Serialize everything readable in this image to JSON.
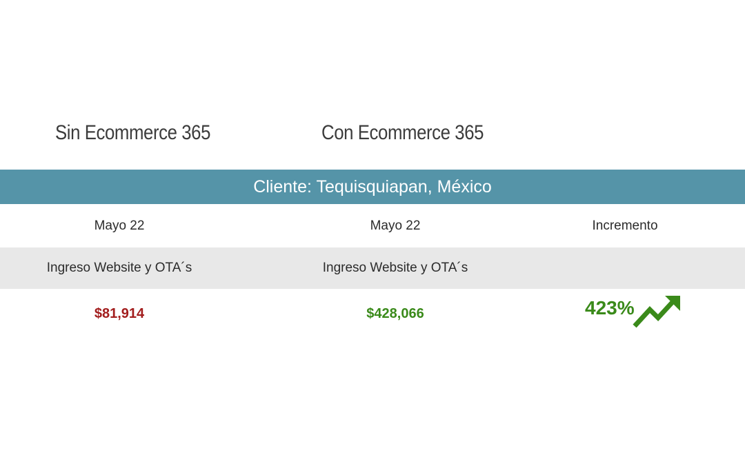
{
  "headings": {
    "left": "Sin Ecommerce 365",
    "right": "Con Ecommerce 365"
  },
  "banner": {
    "text": "Cliente: Tequisquiapan, México",
    "color": "#5594a8"
  },
  "table": {
    "months": {
      "col1": "Mayo 22",
      "col2": "Mayo 22",
      "col3": "Incremento"
    },
    "labels": {
      "col1": "Ingreso Website y OTA´s",
      "col2": "Ingreso Website y OTA´s"
    },
    "values": {
      "col1": "$81,914",
      "col2": "$428,066",
      "col3": "423%"
    }
  },
  "colors": {
    "negative": "#a21d1d",
    "positive": "#3a8a1a",
    "stripe": "#e8e8e8"
  },
  "icons": {
    "increase": "trend-up-arrow-icon"
  }
}
